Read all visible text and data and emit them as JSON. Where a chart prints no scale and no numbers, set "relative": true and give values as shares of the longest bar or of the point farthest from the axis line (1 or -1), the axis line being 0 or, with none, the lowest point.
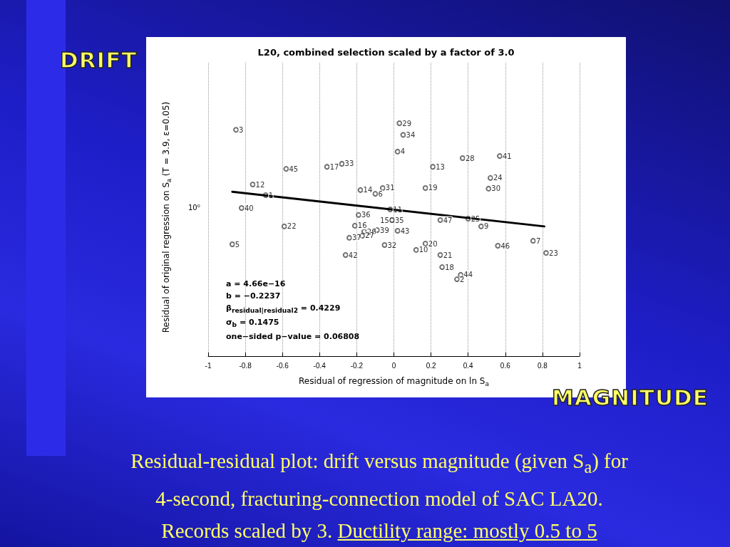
{
  "chart_data": {
    "type": "scatter",
    "title": "L20, combined selection scaled by a factor of 3.0",
    "xlabel": "Residual of regression of magnitude on ln S$_{a}$",
    "ylabel": "Residual of original regression on S$_{a}$ (T = 3.9, ε=0.05)",
    "relative": true,
    "xlim": [
      -1,
      1
    ],
    "xticks": [
      -1,
      -0.8,
      -0.6,
      -0.4,
      -0.2,
      0,
      0.2,
      0.4,
      0.6,
      0.8,
      1
    ],
    "grid": "x",
    "marker": "circle",
    "series": [
      {
        "color": "#4d4d4d",
        "x": [
          0.03,
          -0.85,
          0.05,
          0.02,
          0.37,
          0.57,
          -0.58,
          -0.36,
          -0.28,
          0.21,
          -0.76,
          0.52,
          0.51,
          0.17,
          -0.18,
          -0.06,
          -0.1,
          -0.69,
          -0.82,
          -0.02,
          -0.19,
          -0.01,
          -0.01,
          0.25,
          0.4,
          0.47,
          -0.59,
          -0.21,
          -0.16,
          -0.09,
          0.02,
          -0.24,
          -0.17,
          -0.87,
          -0.05,
          0.17,
          0.12,
          -0.26,
          0.25,
          0.56,
          0.75,
          0.82,
          0.26,
          0.36,
          0.34
        ],
        "values": [
          1.0,
          0.972,
          0.95,
          0.878,
          0.85,
          0.859,
          0.804,
          0.813,
          0.826,
          0.813,
          0.737,
          0.765,
          0.719,
          0.722,
          0.713,
          0.722,
          0.697,
          0.691,
          0.636,
          0.63,
          0.606,
          0.584,
          0.584,
          0.584,
          0.59,
          0.557,
          0.557,
          0.56,
          0.535,
          0.541,
          0.538,
          0.508,
          0.517,
          0.48,
          0.477,
          0.483,
          0.456,
          0.434,
          0.434,
          0.474,
          0.495,
          0.443,
          0.382,
          0.349,
          0.33
        ]
      },
      {
        "type": "line",
        "color": "#000000",
        "marker": "none",
        "x": [
          -0.87,
          0.81
        ],
        "values": [
          0.706,
          0.557
        ]
      }
    ],
    "annotations": [
      "DRIFT",
      "MAGNITUDE",
      "a = 4.66e−16",
      "b = −0.2237",
      "β$_{residual|residual2}$ = 0.4229",
      "σ$_{b}$ = 0.1475",
      "one−sided p−value = 0.06808",
      "Residual-residual plot: drift versus magnitude (given S$_{a}$) for",
      "4-second, fracturing-connection model of SAC  LA20.",
      "Records scaled by 3.",
      "Ductility range: mostly 0.5 to 5",
      "10⁰",
      {
        "text": "29",
        "x": 0.03,
        "y": 1.0
      },
      {
        "text": "3",
        "x": -0.85,
        "y": 0.972
      },
      {
        "text": "34",
        "x": 0.05,
        "y": 0.95
      },
      {
        "text": "4",
        "x": 0.02,
        "y": 0.878
      },
      {
        "text": "28",
        "x": 0.37,
        "y": 0.85
      },
      {
        "text": "41",
        "x": 0.57,
        "y": 0.859
      },
      {
        "text": "45",
        "x": -0.58,
        "y": 0.804
      },
      {
        "text": "17",
        "x": -0.36,
        "y": 0.813
      },
      {
        "text": "33",
        "x": -0.28,
        "y": 0.826
      },
      {
        "text": "13",
        "x": 0.21,
        "y": 0.813
      },
      {
        "text": "12",
        "x": -0.76,
        "y": 0.737
      },
      {
        "text": "24",
        "x": 0.52,
        "y": 0.765
      },
      {
        "text": "30",
        "x": 0.51,
        "y": 0.719
      },
      {
        "text": "19",
        "x": 0.17,
        "y": 0.722
      },
      {
        "text": "14",
        "x": -0.18,
        "y": 0.713
      },
      {
        "text": "31",
        "x": -0.06,
        "y": 0.722
      },
      {
        "text": "6",
        "x": -0.1,
        "y": 0.697
      },
      {
        "text": "1",
        "x": -0.69,
        "y": 0.691
      },
      {
        "text": "40",
        "x": -0.82,
        "y": 0.636
      },
      {
        "text": "11",
        "x": -0.02,
        "y": 0.63
      },
      {
        "text": "36",
        "x": -0.19,
        "y": 0.606
      },
      {
        "text": "35",
        "x": -0.01,
        "y": 0.584
      },
      {
        "text": "15",
        "x": -0.01,
        "y": 0.584
      },
      {
        "text": "47",
        "x": 0.25,
        "y": 0.584
      },
      {
        "text": "25",
        "x": 0.4,
        "y": 0.59
      },
      {
        "text": "9",
        "x": 0.47,
        "y": 0.557
      },
      {
        "text": "22",
        "x": -0.59,
        "y": 0.557
      },
      {
        "text": "16",
        "x": -0.21,
        "y": 0.56
      },
      {
        "text": "26",
        "x": -0.16,
        "y": 0.535
      },
      {
        "text": "39",
        "x": -0.09,
        "y": 0.541
      },
      {
        "text": "43",
        "x": 0.02,
        "y": 0.538
      },
      {
        "text": "37",
        "x": -0.24,
        "y": 0.508
      },
      {
        "text": "27",
        "x": -0.17,
        "y": 0.517
      },
      {
        "text": "5",
        "x": -0.87,
        "y": 0.48
      },
      {
        "text": "32",
        "x": -0.05,
        "y": 0.477
      },
      {
        "text": "20",
        "x": 0.17,
        "y": 0.483
      },
      {
        "text": "10",
        "x": 0.12,
        "y": 0.456
      },
      {
        "text": "42",
        "x": -0.26,
        "y": 0.434
      },
      {
        "text": "21",
        "x": 0.25,
        "y": 0.434
      },
      {
        "text": "46",
        "x": 0.56,
        "y": 0.474
      },
      {
        "text": "7",
        "x": 0.75,
        "y": 0.495
      },
      {
        "text": "23",
        "x": 0.82,
        "y": 0.443
      },
      {
        "text": "18",
        "x": 0.26,
        "y": 0.382
      },
      {
        "text": "44",
        "x": 0.36,
        "y": 0.349
      },
      {
        "text": "2",
        "x": 0.34,
        "y": 0.33
      }
    ]
  }
}
